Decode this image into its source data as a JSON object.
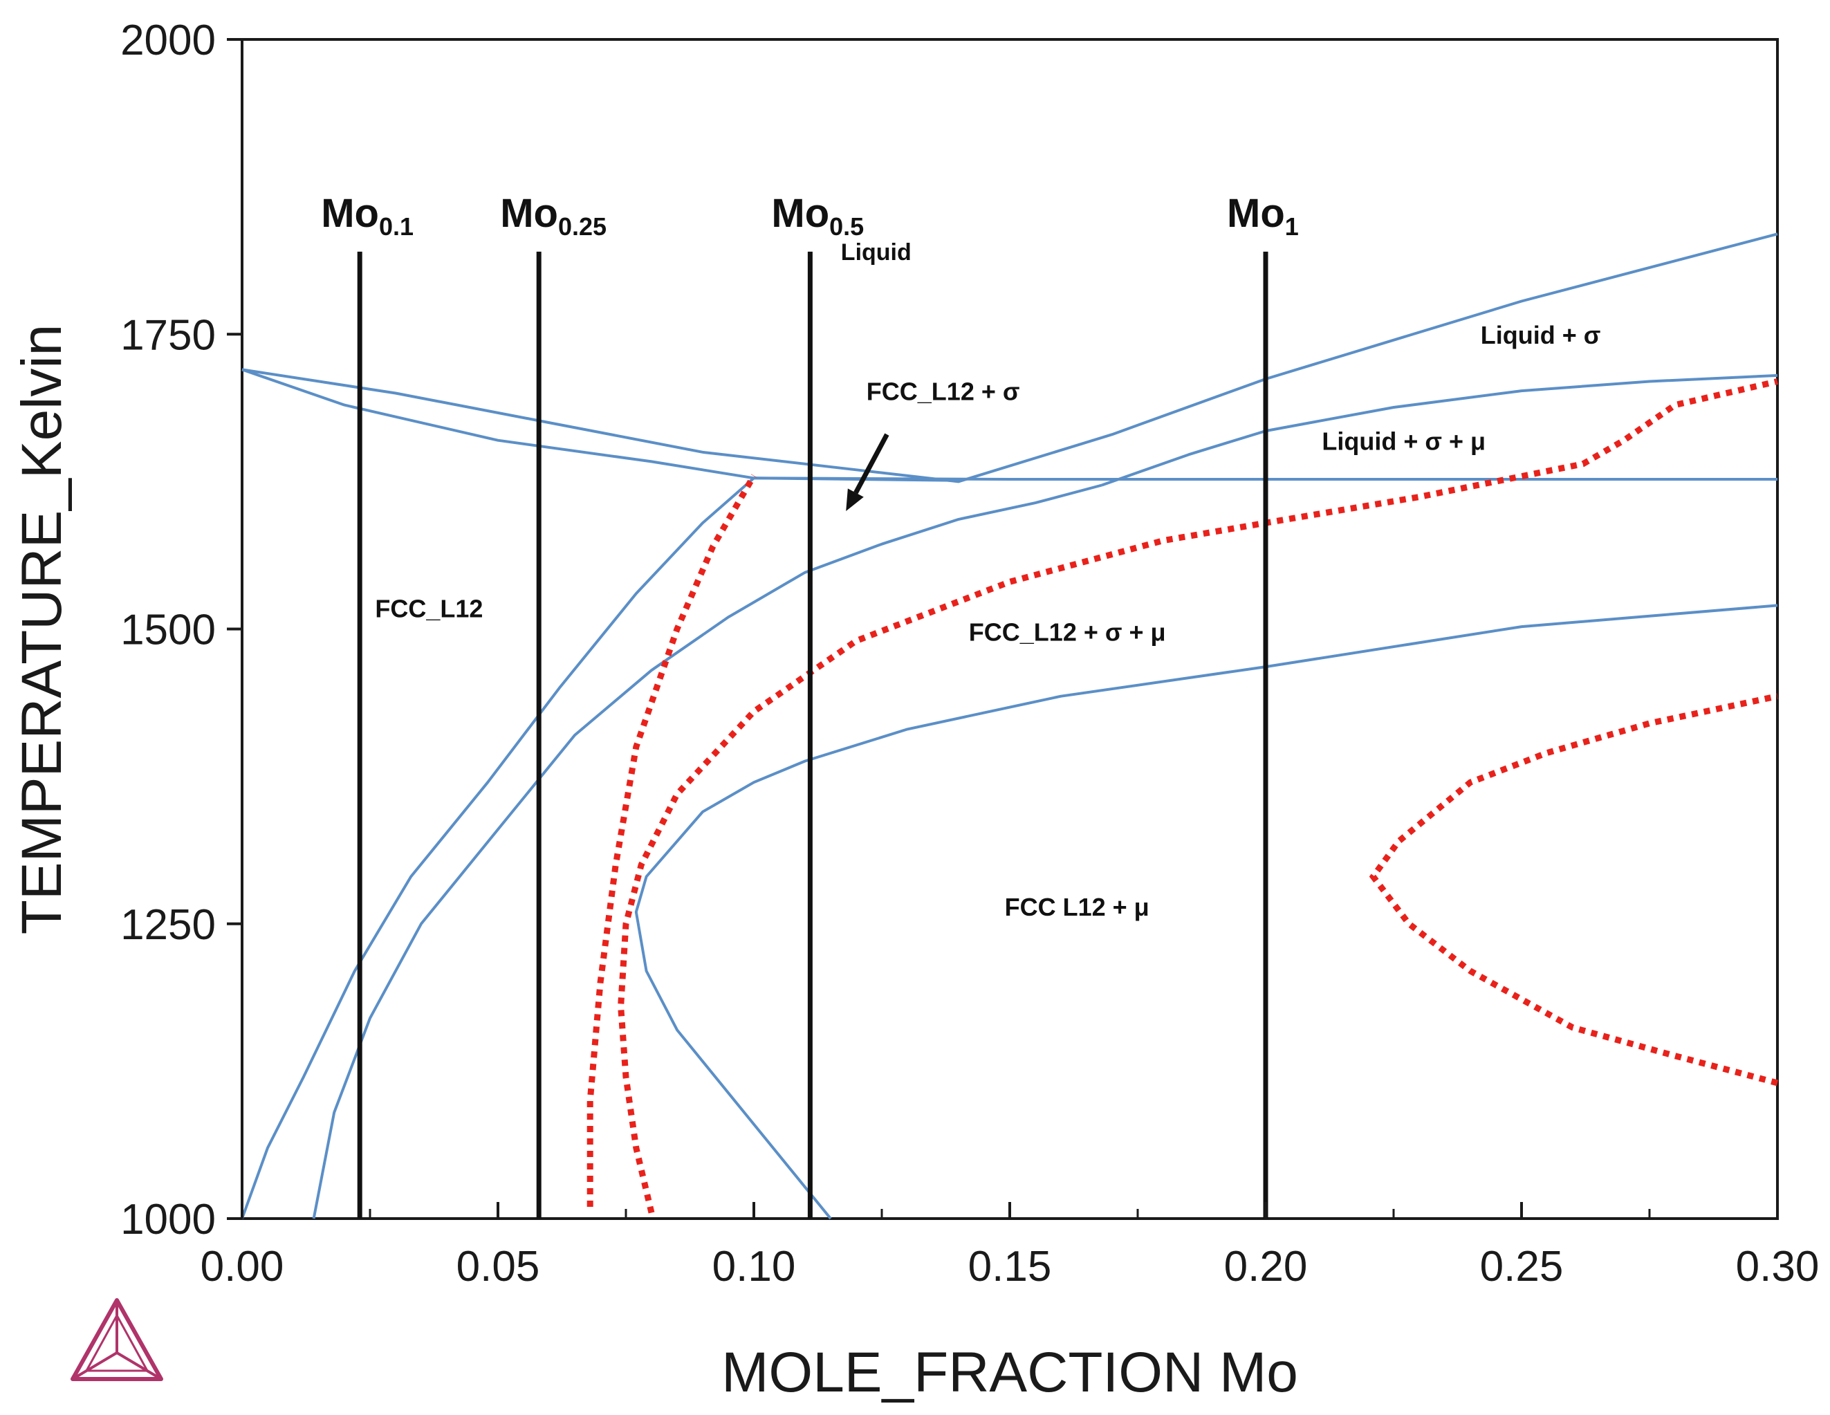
{
  "chart_data": {
    "type": "line",
    "title": "",
    "xlabel": "MOLE_FRACTION Mo",
    "ylabel": "TEMPERATURE_Kelvin",
    "xlim": [
      0.0,
      0.3
    ],
    "ylim": [
      1000,
      2000
    ],
    "grid": false,
    "x_ticks": [
      0.0,
      0.05,
      0.1,
      0.15,
      0.2,
      0.25,
      0.3
    ],
    "x_tick_labels": [
      "0.00",
      "0.05",
      "0.10",
      "0.15",
      "0.20",
      "0.25",
      "0.30"
    ],
    "y_ticks": [
      1000,
      1250,
      1500,
      1750,
      2000
    ],
    "y_tick_labels": [
      "1000",
      "1250",
      "1500",
      "1750",
      "2000"
    ],
    "colors": {
      "phase_boundary": "#5b8fc7",
      "dotted": "#e8221b",
      "composition": "#111111",
      "logo": "#b0336a"
    },
    "phase_boundaries": [
      {
        "name": "liquidus-upper",
        "points": [
          [
            0.0,
            1720
          ],
          [
            0.03,
            1700
          ],
          [
            0.06,
            1675
          ],
          [
            0.09,
            1650
          ],
          [
            0.12,
            1635
          ],
          [
            0.14,
            1625
          ],
          [
            0.17,
            1665
          ],
          [
            0.2,
            1712
          ],
          [
            0.25,
            1778
          ],
          [
            0.3,
            1835
          ]
        ]
      },
      {
        "name": "solidus-fcc",
        "points": [
          [
            0.0,
            1720
          ],
          [
            0.02,
            1690
          ],
          [
            0.05,
            1660
          ],
          [
            0.08,
            1642
          ],
          [
            0.1,
            1628
          ],
          [
            0.14,
            1626
          ]
        ]
      },
      {
        "name": "isotherm-1627",
        "points": [
          [
            0.1,
            1628
          ],
          [
            0.15,
            1627
          ],
          [
            0.2,
            1627
          ],
          [
            0.25,
            1627
          ],
          [
            0.3,
            1627
          ]
        ]
      },
      {
        "name": "liquid-sigma-mu-upper",
        "points": [
          [
            0.168,
            1622
          ],
          [
            0.185,
            1648
          ],
          [
            0.2,
            1668
          ],
          [
            0.225,
            1688
          ],
          [
            0.25,
            1702
          ],
          [
            0.275,
            1710
          ],
          [
            0.3,
            1715
          ]
        ]
      },
      {
        "name": "fcc-solvus-outer",
        "points": [
          [
            0.0,
            1000
          ],
          [
            0.005,
            1060
          ],
          [
            0.012,
            1120
          ],
          [
            0.022,
            1210
          ],
          [
            0.033,
            1290
          ],
          [
            0.048,
            1370
          ],
          [
            0.062,
            1450
          ],
          [
            0.077,
            1530
          ],
          [
            0.09,
            1590
          ],
          [
            0.1,
            1628
          ]
        ]
      },
      {
        "name": "fcc-sigma-boundary",
        "points": [
          [
            0.014,
            1000
          ],
          [
            0.018,
            1090
          ],
          [
            0.025,
            1170
          ],
          [
            0.035,
            1250
          ],
          [
            0.05,
            1330
          ],
          [
            0.065,
            1410
          ],
          [
            0.08,
            1465
          ],
          [
            0.095,
            1510
          ],
          [
            0.11,
            1548
          ],
          [
            0.125,
            1572
          ],
          [
            0.14,
            1593
          ],
          [
            0.155,
            1607
          ],
          [
            0.168,
            1622
          ]
        ]
      },
      {
        "name": "mu-solvus",
        "points": [
          [
            0.115,
            1000
          ],
          [
            0.1,
            1080
          ],
          [
            0.085,
            1160
          ],
          [
            0.079,
            1210
          ],
          [
            0.077,
            1260
          ],
          [
            0.079,
            1290
          ],
          [
            0.085,
            1320
          ],
          [
            0.09,
            1345
          ],
          [
            0.1,
            1370
          ],
          [
            0.11,
            1388
          ],
          [
            0.13,
            1415
          ],
          [
            0.16,
            1443
          ],
          [
            0.2,
            1468
          ],
          [
            0.25,
            1502
          ],
          [
            0.3,
            1520
          ]
        ]
      }
    ],
    "dotted_curves": [
      {
        "name": "dotted-1",
        "points": [
          [
            0.068,
            1010
          ],
          [
            0.068,
            1100
          ],
          [
            0.07,
            1200
          ],
          [
            0.073,
            1300
          ],
          [
            0.077,
            1400
          ],
          [
            0.085,
            1500
          ],
          [
            0.092,
            1570
          ],
          [
            0.1,
            1630
          ]
        ]
      },
      {
        "name": "dotted-2",
        "points": [
          [
            0.08,
            1005
          ],
          [
            0.077,
            1060
          ],
          [
            0.075,
            1120
          ],
          [
            0.074,
            1180
          ],
          [
            0.075,
            1250
          ],
          [
            0.078,
            1300
          ],
          [
            0.085,
            1360
          ],
          [
            0.1,
            1430
          ],
          [
            0.12,
            1490
          ],
          [
            0.15,
            1540
          ],
          [
            0.18,
            1575
          ],
          [
            0.2,
            1590
          ],
          [
            0.23,
            1612
          ],
          [
            0.262,
            1640
          ],
          [
            0.27,
            1660
          ],
          [
            0.28,
            1690
          ],
          [
            0.3,
            1710
          ]
        ]
      },
      {
        "name": "dotted-3",
        "points": [
          [
            0.3,
            1115
          ],
          [
            0.28,
            1138
          ],
          [
            0.26,
            1162
          ],
          [
            0.24,
            1210
          ],
          [
            0.228,
            1250
          ],
          [
            0.221,
            1290
          ],
          [
            0.226,
            1320
          ],
          [
            0.24,
            1370
          ],
          [
            0.255,
            1395
          ],
          [
            0.275,
            1420
          ],
          [
            0.3,
            1443
          ]
        ]
      }
    ],
    "composition_lines": [
      {
        "x": 0.023,
        "label_main": "Mo",
        "label_sub": "0.1"
      },
      {
        "x": 0.058,
        "label_main": "Mo",
        "label_sub": "0.25"
      },
      {
        "x": 0.111,
        "label_main": "Mo",
        "label_sub": "0.5"
      },
      {
        "x": 0.2,
        "label_main": "Mo",
        "label_sub": "1"
      }
    ],
    "composition_line_top": 1820,
    "region_labels": [
      {
        "text": "Liquid",
        "x": 0.117,
        "y": 1813,
        "size": 34
      },
      {
        "text": "Liquid + σ",
        "x": 0.242,
        "y": 1742,
        "size": 36
      },
      {
        "text": "FCC_L12 + σ",
        "x": 0.122,
        "y": 1694,
        "size": 36
      },
      {
        "text": "Liquid + σ + μ",
        "x": 0.211,
        "y": 1652,
        "size": 36
      },
      {
        "text": "FCC_L12",
        "x": 0.026,
        "y": 1510,
        "size": 36
      },
      {
        "text": "FCC_L12 + σ + μ",
        "x": 0.142,
        "y": 1490,
        "size": 36
      },
      {
        "text": "FCC  L12 +  μ",
        "x": 0.149,
        "y": 1257,
        "size": 36
      }
    ],
    "arrow": {
      "from": [
        0.126,
        1665
      ],
      "to": [
        0.118,
        1600
      ]
    }
  }
}
